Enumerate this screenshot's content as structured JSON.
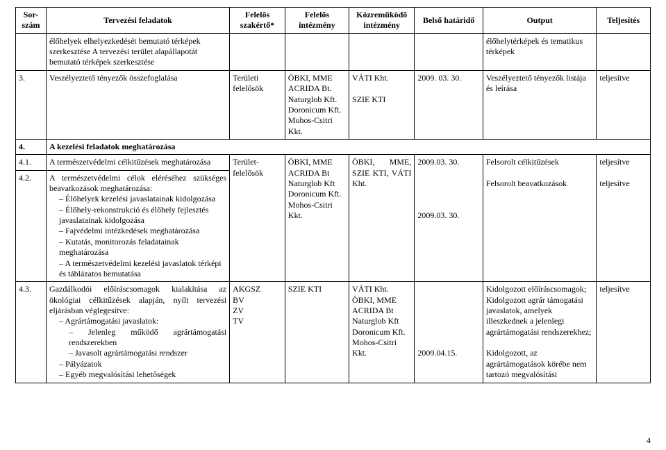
{
  "columns": {
    "c0": "Sor-szám",
    "c1": "Tervezési feladatok",
    "c2": "Felelős szakértő*",
    "c3": "Felelős intézmény",
    "c4": "Közreműködő intézmény",
    "c5": "Belső határidő",
    "c6": "Output",
    "c7": "Teljesítés"
  },
  "widths": {
    "c0": 42,
    "c1": 252,
    "c2": 76,
    "c3": 88,
    "c4": 90,
    "c5": 94,
    "c6": 156,
    "c7": 74
  },
  "row_cont": {
    "task": "élőhelyek elhelyezkedését bemutató térképek szerkesztése A tervezési terület alapállapotát bemutató térképek szerkesztése",
    "output": "élőhelytérképek és tematikus térképek"
  },
  "row3": {
    "num": "3.",
    "task": "Veszélyeztető tényezők összefoglalása",
    "expert": "Területi felelősök",
    "inst_lines": [
      "ÖBKI, MME",
      "ACRIDA Bt.",
      "Naturglob Kft.",
      "Doronicum Kft.",
      "Mohos-Csitri Kkt."
    ],
    "coop_lines": [
      "VÁTI Kht.",
      "SZIE KTI"
    ],
    "deadline": "2009. 03. 30.",
    "output": "Veszélyeztető tényezők listája és leírása",
    "status": "teljesítve"
  },
  "section4": {
    "num": "4.",
    "title": "A kezelési feladatok meghatározása"
  },
  "row41_42": {
    "r41_num": "4.1.",
    "r41_task": "A természetvédelmi célkitűzések meghatározása",
    "r42_num": "4.2.",
    "r42_task_head": "A természetvédelmi célok eléréséhez szükséges beavatkozások meghatározása:",
    "r42_bullets": [
      "Élőhelyek kezelési javaslatainak kidolgozása",
      "Élőhely-rekonstrukció és élőhely fejlesztés javaslatainak kidolgozása",
      "Fajvédelmi intézkedések meghatározása",
      "Kutatás, monitorozás feladatainak meghatározása",
      "A természetvédelmi kezelési javaslatok térképi és táblázatos bemutatása"
    ],
    "expert": "Terület-felelősök",
    "inst_lines": [
      "ÖBKI, MME",
      "ACRIDA Bt",
      "Naturglob Kft",
      "Doronicum Kft.",
      "Mohos-Csitri Kkt."
    ],
    "coop_lines": [
      "ÖBKI,      MME, SZIE       KTI, VÁTI Kht."
    ],
    "deadlines": [
      "2009.03. 30.",
      "2009.03. 30."
    ],
    "outputs": [
      "Felsorolt célkitűzések",
      "Felsorolt beavatkozások"
    ],
    "statuses": [
      "teljesítve",
      "teljesítve"
    ]
  },
  "row43": {
    "num": "4.3.",
    "task_head": "Gazdálkodói előíráscsomagok kialakítása az ökológiai célkitűzések alapján, nyílt tervezési eljárásban véglegesítve:",
    "bullets": [
      "Agrártámogatási javaslatok:",
      "Pályázatok",
      "Egyéb megvalósítási lehetőségek"
    ],
    "sub_bullets": [
      "Jelenleg működő agrártámogatási rendszerekben",
      "Javasolt agrártámogatási rendszer"
    ],
    "expert_lines": [
      "AKGSZ",
      "BV",
      "ZV",
      "TV"
    ],
    "inst": "SZIE KTI",
    "coop_lines": [
      "VÁTI Kht.",
      "ÖBKI, MME",
      "ACRIDA Bt",
      "Naturglob Kft",
      "Doronicum Kft.",
      "Mohos-Csitri Kkt."
    ],
    "deadline": "2009.04.15.",
    "output_lines": [
      "Kidolgozott előíráscsomagok;",
      "Kidolgozott agrár támogatási javaslatok, amelyek illeszkednek a jelenlegi agrártámogatási rendszerekhez;",
      "Kidolgozott, az agrártámogatások körébe nem tartozó megvalósítási"
    ],
    "status": "teljesítve"
  },
  "page_number": "4"
}
